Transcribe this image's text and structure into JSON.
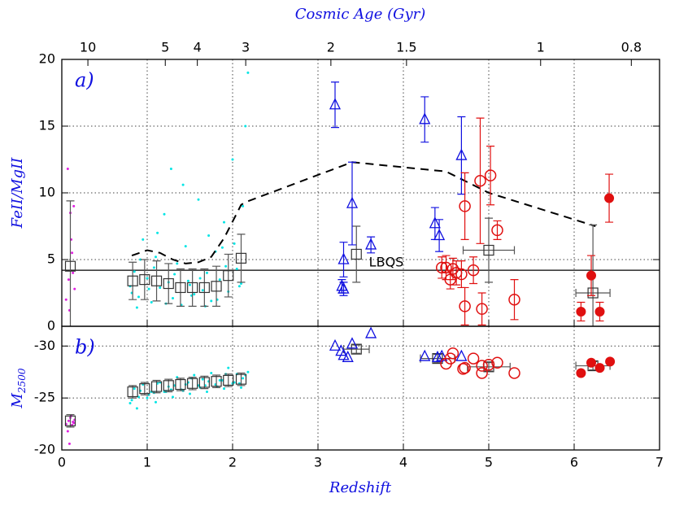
{
  "chart_data": [
    {
      "type": "scatter",
      "panel_label": "a)",
      "ylabel": "FeII/MgII",
      "top_axis": {
        "label": "Cosmic Age (Gyr)",
        "ticks": [
          10,
          5,
          4,
          3,
          2,
          1.5,
          1,
          0.8
        ]
      },
      "xlim": [
        0,
        7
      ],
      "xticks": [
        0,
        1,
        2,
        3,
        4,
        5,
        6,
        7
      ],
      "ylim": [
        0,
        20
      ],
      "yticks": [
        0,
        5,
        10,
        15,
        20
      ],
      "grid": true,
      "reference_line": {
        "value": 4.2,
        "label": "LBQS",
        "label_x": 3.8
      },
      "series": [
        {
          "marker": "dot",
          "color": "#00e5e5",
          "x": [
            0.8,
            0.85,
            0.9,
            0.95,
            1.0,
            1.05,
            1.1,
            1.15,
            1.2,
            1.25,
            1.3,
            1.35,
            1.4,
            1.45,
            1.5,
            1.55,
            1.6,
            1.65,
            1.7,
            1.75,
            1.8,
            1.85,
            1.9,
            1.95,
            2.0,
            2.05,
            2.1,
            2.15,
            0.82,
            0.92,
            1.02,
            1.12,
            1.22,
            1.32,
            1.42,
            1.52,
            1.62,
            1.72,
            1.82,
            1.92,
            2.02,
            2.12,
            0.88,
            1.08,
            1.28,
            1.48,
            1.68,
            1.88,
            2.08,
            2.18
          ],
          "values": [
            3.0,
            4.1,
            2.2,
            6.5,
            3.6,
            1.8,
            5.2,
            2.9,
            8.4,
            3.3,
            2.1,
            4.7,
            1.6,
            6.0,
            3.1,
            2.4,
            9.5,
            2.7,
            4.0,
            1.9,
            5.6,
            3.5,
            7.8,
            2.6,
            12.5,
            4.3,
            3.2,
            15.0,
            2.5,
            5.0,
            2.8,
            7.0,
            1.7,
            3.9,
            10.6,
            2.3,
            3.6,
            6.8,
            2.0,
            4.5,
            6.2,
            9.0,
            1.4,
            4.4,
            11.8,
            3.4,
            1.5,
            5.9,
            3.0,
            19.0
          ]
        },
        {
          "marker": "dot",
          "color": "#e020e0",
          "x": [
            0.05,
            0.08,
            0.1,
            0.12,
            0.15,
            0.07,
            0.11,
            0.13,
            0.09,
            0.14
          ],
          "values": [
            2.0,
            3.5,
            8.5,
            5.5,
            2.8,
            11.8,
            6.5,
            4.0,
            1.2,
            9.0
          ]
        },
        {
          "marker": "line",
          "color": "#000000",
          "dashed": true,
          "x": [
            0.82,
            1.0,
            1.15,
            1.3,
            1.45,
            1.6,
            1.75,
            1.9,
            2.1,
            2.15,
            3.4,
            4.5,
            5.0,
            6.25
          ],
          "values": [
            5.3,
            5.7,
            5.5,
            5.0,
            4.7,
            4.8,
            5.2,
            6.6,
            9.1,
            9.3,
            12.3,
            11.6,
            10.0,
            7.5
          ]
        },
        {
          "marker": "square",
          "color": "#333333",
          "x": [
            0.1,
            0.83,
            0.97,
            1.11,
            1.25,
            1.39,
            1.53,
            1.67,
            1.81,
            1.95,
            2.1
          ],
          "values": [
            4.5,
            3.4,
            3.5,
            3.4,
            3.2,
            2.9,
            2.9,
            2.9,
            3.0,
            3.8,
            5.1
          ],
          "errors": [
            4.9,
            1.4,
            1.5,
            1.5,
            1.5,
            1.4,
            1.4,
            1.4,
            1.5,
            1.6,
            1.8
          ]
        },
        {
          "marker": "square",
          "color": "#333333",
          "x": [
            3.45,
            5.0,
            6.22
          ],
          "values": [
            5.4,
            5.7,
            2.5
          ],
          "errors": [
            2.1,
            2.4,
            5.1
          ],
          "xerrors": [
            null,
            0.3,
            0.2
          ]
        },
        {
          "marker": "triangle",
          "color": "#1010e0",
          "x": [
            3.2,
            3.3,
            3.28,
            3.3,
            3.4,
            3.62,
            4.25,
            4.37,
            4.42,
            4.68
          ],
          "values": [
            16.6,
            5.0,
            3.0,
            2.8,
            9.2,
            6.1,
            15.5,
            7.7,
            6.8,
            12.8
          ],
          "errors": [
            1.7,
            1.3,
            0.5,
            0.5,
            3.1,
            0.6,
            1.7,
            1.2,
            1.2,
            2.9
          ]
        },
        {
          "marker": "circle",
          "color": "#e01010",
          "x": [
            4.45,
            4.5,
            4.55,
            4.58,
            4.62,
            4.68,
            4.72,
            4.72,
            4.82,
            4.9,
            4.92,
            5.02,
            5.1,
            5.3
          ],
          "values": [
            4.4,
            4.4,
            3.5,
            4.3,
            4.0,
            3.9,
            1.5,
            9.0,
            4.2,
            10.9,
            1.3,
            11.3,
            7.2,
            2.0
          ],
          "errors": [
            0.8,
            0.9,
            0.7,
            0.8,
            0.9,
            1.0,
            1.4,
            2.5,
            1.0,
            4.7,
            1.2,
            2.2,
            0.7,
            1.5
          ]
        },
        {
          "marker": "filled-circle",
          "color": "#e01010",
          "x": [
            6.08,
            6.2,
            6.3,
            6.41
          ],
          "values": [
            1.1,
            3.8,
            1.1,
            9.6
          ],
          "errors": [
            0.7,
            1.5,
            0.7,
            1.8
          ]
        }
      ]
    },
    {
      "type": "scatter",
      "panel_label": "b)",
      "ylabel": "M",
      "ylabel_sub": "2500",
      "xlabel": "Redshift",
      "xlim": [
        0,
        7
      ],
      "xticks": [
        0,
        1,
        2,
        3,
        4,
        5,
        6,
        7
      ],
      "ylim": [
        -20,
        -31.9
      ],
      "yticks": [
        -30,
        -25,
        -20
      ],
      "grid": true,
      "series": [
        {
          "marker": "dot",
          "color": "#00e5e5",
          "x": [
            0.8,
            0.85,
            0.9,
            0.95,
            1.0,
            1.05,
            1.1,
            1.15,
            1.2,
            1.25,
            1.3,
            1.35,
            1.4,
            1.45,
            1.5,
            1.55,
            1.6,
            1.65,
            1.7,
            1.75,
            1.8,
            1.85,
            1.9,
            1.95,
            2.0,
            2.05,
            2.1,
            2.15,
            0.82,
            0.92,
            1.02,
            1.12,
            1.22,
            1.32,
            1.42,
            1.52,
            1.62,
            1.72,
            1.82,
            1.92,
            2.02,
            2.12,
            0.88,
            1.08,
            1.28,
            1.48,
            1.68,
            1.88,
            2.08,
            2.18
          ],
          "values": [
            -24.5,
            -25.9,
            -25.1,
            -26.3,
            -25.0,
            -25.6,
            -24.6,
            -26.5,
            -25.6,
            -26.1,
            -25.1,
            -27.0,
            -25.8,
            -26.3,
            -25.4,
            -27.2,
            -26.2,
            -26.8,
            -25.6,
            -27.4,
            -26.3,
            -26.7,
            -25.9,
            -27.9,
            -26.4,
            -27.3,
            -26.0,
            -27.2,
            -24.8,
            -25.7,
            -25.3,
            -26.4,
            -25.6,
            -26.2,
            -25.7,
            -26.9,
            -26.0,
            -26.6,
            -26.1,
            -27.3,
            -26.5,
            -26.9,
            -24.0,
            -25.5,
            -25.8,
            -26.5,
            -26.2,
            -26.7,
            -26.4,
            -27.5
          ]
        },
        {
          "marker": "dot",
          "color": "#e020e0",
          "x": [
            0.05,
            0.08,
            0.1,
            0.12,
            0.15,
            0.07,
            0.11,
            0.13,
            0.09,
            0.14
          ],
          "values": [
            -22.5,
            -22.8,
            -23.1,
            -22.4,
            -22.9,
            -21.8,
            -23.3,
            -22.7,
            -20.6,
            -22.6
          ]
        },
        {
          "marker": "square",
          "color": "#333333",
          "x": [
            0.1,
            0.83,
            0.97,
            1.11,
            1.25,
            1.39,
            1.53,
            1.67,
            1.81,
            1.95,
            2.1
          ],
          "values": [
            -22.8,
            -25.6,
            -25.9,
            -26.1,
            -26.2,
            -26.3,
            -26.4,
            -26.5,
            -26.6,
            -26.7,
            -26.8
          ],
          "errors": [
            0.6,
            0.6,
            0.6,
            0.6,
            0.6,
            0.6,
            0.6,
            0.6,
            0.6,
            0.6,
            0.6
          ]
        },
        {
          "marker": "square",
          "color": "#333333",
          "x": [
            3.45,
            4.4,
            5.0,
            6.22
          ],
          "values": [
            -29.7,
            -28.8,
            -28.0,
            -28.1
          ],
          "errors": [
            0.4,
            0.4,
            0.4,
            0.4
          ],
          "xerrors": [
            0.15,
            0.2,
            0.25,
            0.2
          ]
        },
        {
          "marker": "triangle",
          "color": "#1010e0",
          "x": [
            3.2,
            3.27,
            3.3,
            3.35,
            3.4,
            3.62,
            4.25,
            4.4,
            4.45,
            4.68
          ],
          "values": [
            -30.0,
            -29.5,
            -29.1,
            -28.9,
            -30.2,
            -31.2,
            -29.0,
            -28.9,
            -29.0,
            -29.0
          ]
        },
        {
          "marker": "circle",
          "color": "#e01010",
          "x": [
            4.5,
            4.55,
            4.58,
            4.7,
            4.72,
            4.82,
            4.92,
            4.92,
            5.0,
            5.1,
            5.3
          ],
          "values": [
            -28.3,
            -28.8,
            -29.3,
            -27.8,
            -27.9,
            -28.8,
            -27.4,
            -28.1,
            -28.2,
            -28.4,
            -27.4
          ]
        },
        {
          "marker": "filled-circle",
          "color": "#e01010",
          "x": [
            6.08,
            6.2,
            6.3,
            6.42
          ],
          "values": [
            -27.4,
            -28.4,
            -27.9,
            -28.5
          ]
        }
      ]
    }
  ]
}
